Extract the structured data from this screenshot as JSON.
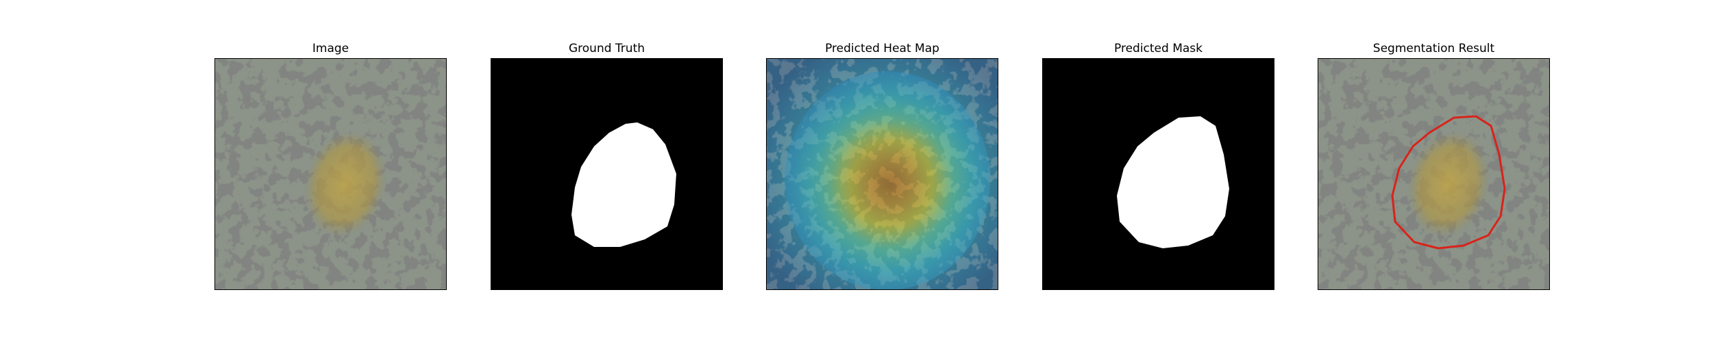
{
  "figure": {
    "panels": [
      {
        "title": "Image",
        "kind": "photo"
      },
      {
        "title": "Ground Truth",
        "kind": "mask"
      },
      {
        "title": "Predicted Heat Map",
        "kind": "heatmap"
      },
      {
        "title": "Predicted Mask",
        "kind": "mask"
      },
      {
        "title": "Segmentation Result",
        "kind": "overlay"
      }
    ],
    "colors": {
      "background": "#ffffff",
      "mask_background": "#000000",
      "mask_foreground": "#ffffff",
      "contour": "#d8231a",
      "texture_light": "#8c9388",
      "texture_dark": "#3a3b38",
      "lesion_tint": "#b39a3a"
    }
  }
}
